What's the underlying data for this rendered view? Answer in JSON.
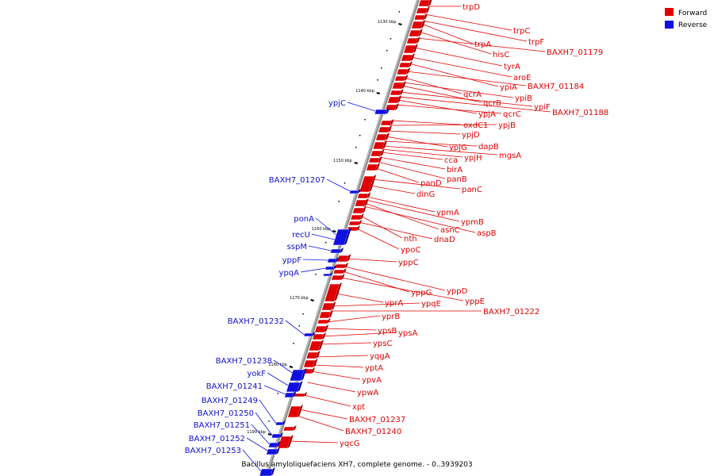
{
  "caption": "Bacillus amyloliquefaciens XH7, complete genome. - 0..3939203",
  "legend": [
    {
      "label": "Forward",
      "color": "#e00000"
    },
    {
      "label": "Reverse",
      "color": "#1010e0"
    }
  ],
  "kbp_ticks": [
    "1130 kbp",
    "1140 kbp",
    "1150 kbp",
    "1160 kbp",
    "1170 kbp",
    "1180 kbp",
    "1190 kbp"
  ],
  "forward_genes": [
    "trpD",
    "trpC",
    "trpF",
    "trpA",
    "hisC",
    "BAXH7_01179",
    "tyrA",
    "aroE",
    "ypiA",
    "BAXH7_01184",
    "qcrA",
    "ypiB",
    "qcrB",
    "ypiF",
    "BAXH7_01188",
    "ypjA",
    "qcrC",
    "oxdC1",
    "ypjB",
    "ypjD",
    "ypjG",
    "dapB",
    "mgsA",
    "ypjH",
    "cca",
    "birA",
    "panB",
    "panD",
    "panC",
    "dinG",
    "ypmA",
    "ypmB",
    "asnC",
    "aspB",
    "nth",
    "dnaD",
    "ypoC",
    "yppC",
    "yppD",
    "yppG",
    "yppE",
    "yprA",
    "ypqE",
    "BAXH7_01222",
    "yprB",
    "ypsB",
    "ypsA",
    "ypsC",
    "yqgA",
    "yptA",
    "ypvA",
    "ypwA",
    "xpt",
    "BAXH7_01237",
    "BAXH7_01240",
    "yqcG"
  ],
  "reverse_genes": [
    "ypjC",
    "BAXH7_01207",
    "ponA",
    "recU",
    "sspM",
    "yppF",
    "ypqA",
    "BAXH7_01232",
    "BAXH7_01238",
    "yokF",
    "BAXH7_01241",
    "BAXH7_01249",
    "BAXH7_01250",
    "BAXH7_01251",
    "BAXH7_01252",
    "BAXH7_01253"
  ],
  "colors": {
    "forward": "#e00000",
    "reverse": "#1010e0",
    "backbone": "#909090"
  }
}
